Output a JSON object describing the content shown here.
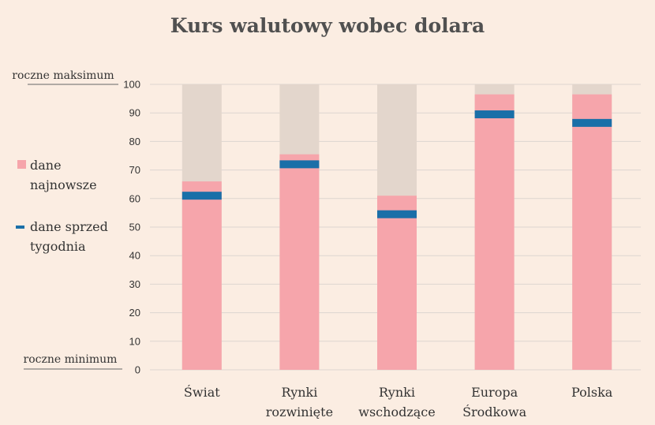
{
  "chart_data": {
    "type": "bar",
    "title": "Kurs walutowy wobec dolara",
    "categories": [
      [
        "Świat"
      ],
      [
        "Rynki",
        "rozwinięte"
      ],
      [
        "Rynki",
        "wschodzące"
      ],
      [
        "Europa",
        "Środkowa"
      ],
      [
        "Polska"
      ]
    ],
    "series": [
      {
        "name": "dane najnowsze",
        "values": [
          66,
          75.5,
          61,
          96.5,
          96.5
        ]
      },
      {
        "name": "dane sprzed tygodnia",
        "values": [
          61,
          72,
          54.5,
          89.5,
          86.5
        ]
      }
    ],
    "range_max": 100,
    "ylim": [
      0,
      100
    ],
    "yticks": [
      0,
      10,
      20,
      30,
      40,
      50,
      60,
      70,
      80,
      90,
      100
    ],
    "ylabel_top": "roczne maksimum",
    "ylabel_bottom": "roczne minimum",
    "legend_placement": "left",
    "grid": true,
    "colors": {
      "background": "#fbede2",
      "range": "#e3d6cc",
      "latest": "#f6a5ab",
      "week_ago": "#1a6fa8",
      "grid": "#ddd5d0"
    }
  }
}
